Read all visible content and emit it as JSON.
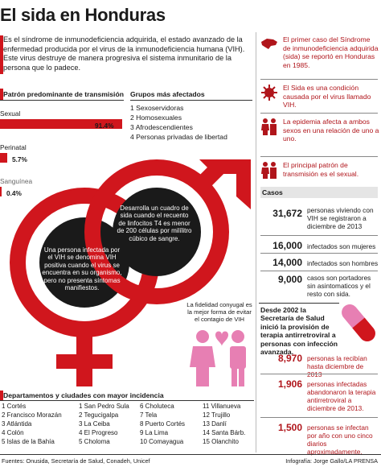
{
  "title": "El sida en Honduras",
  "intro": "Es el síndrome de inmunodeficiencia adquirida, el estado avanzado de la enfermedad producida por el virus de la inmunodeficiencia humana (VIH). Este virus destruye de manera progresiva el sistema inmunitario de la persona que lo padece.",
  "transmission": {
    "heading": "Patrón predominante de transmisión",
    "items": [
      {
        "label": "Sexual",
        "value": "91.4%",
        "fraction": 0.914
      },
      {
        "label": "Perinatal",
        "value": "5.7%",
        "fraction": 0.057
      },
      {
        "label": "Sanguínea",
        "value": "0.4%",
        "fraction": 0.004
      }
    ]
  },
  "groups": {
    "heading": "Grupos más afectados",
    "items": [
      "1 Sexoservidoras",
      "2 Homosexuales",
      "3 Afrodescendientes",
      "4 Personas privadas de libertad"
    ]
  },
  "circles": {
    "left": "Una persona infectada por el VIH se denomina VIH positiva cuando el virus se encuentra en su organismo, pero no presenta síntomas manifiestos.",
    "right": "Desarrolla un cuadro de sida cuando el recuento de linfocitos T4 es menor de 200 células por milílitro cúbico de sangre."
  },
  "fidelity": "La fidelidad conyugal es la mejor forma de evitar el contagio de VIH",
  "facts": [
    {
      "icon": "honduras-map-icon",
      "text": "El primer caso del Síndrome de inmunodeficiencia adquirida (sida) se reportó en Honduras en 1985."
    },
    {
      "icon": "virus-icon",
      "text": "El Sida es una condición causada por el virus llamado VIH."
    },
    {
      "icon": "couple-icon",
      "text": "La epidemia afecta a ambos sexos en una relación de uno a uno."
    },
    {
      "icon": "couple-icon",
      "text": "El principal patrón de transmisión es el sexual."
    }
  ],
  "casos": {
    "heading": "Casos",
    "items": [
      {
        "num": "31,672",
        "text": "personas viviendo con VIH se registraron a diciembre de 2013"
      },
      {
        "num": "16,000",
        "text": "infectados son mujeres"
      },
      {
        "num": "14,000",
        "text": "infectados son hombres"
      },
      {
        "num": "9,000",
        "text": "casos son portadores sin asintomaticos y el resto con sida."
      }
    ]
  },
  "treatment": {
    "heading": "Desde 2002 la Secretaría de Salud inició la provisión de terapia antirretroviral a personas con infección avanzada.",
    "items": [
      {
        "num": "8,970",
        "text": "personas la recibían hasta diciembre de 2013"
      },
      {
        "num": "1,906",
        "text": "personas infectadas abandonaron la terapia antirretroviral a diciembre de 2013."
      },
      {
        "num": "1,500",
        "text": "personas se infectan por año con uno cinco diarios aproximadamente."
      }
    ]
  },
  "departments": {
    "heading": "Departamentos y ciudades con mayor incidencia",
    "columns": [
      [
        "1 Cortés",
        "2 Francisco Morazán",
        "3 Atlántida",
        "4 Colón",
        "5 Islas de la Bahía"
      ],
      [
        "1 San Pedro Sula",
        "2 Tegucigalpa",
        "3 La Ceiba",
        "4 El Progreso",
        "5 Choloma"
      ],
      [
        "6 Choluteca",
        "7 Tela",
        "8 Puerto Cortés",
        "9 La Lima",
        "10 Comayagua"
      ],
      [
        "11 Villanueva",
        "12 Trujillo",
        "13 Danlí",
        "14 Santa Bárb.",
        "15 Olanchito"
      ]
    ]
  },
  "footer": {
    "sources": "Fuentes: Onusida, Secretaría de Salud, Conadeh, Unicef",
    "credit": "Infografía: Jorge Gallo/LA PRENSA"
  },
  "colors": {
    "red": "#d0161d",
    "dark_red": "#b0151b",
    "pink": "#e77fb3",
    "black": "#1a1a1a"
  }
}
